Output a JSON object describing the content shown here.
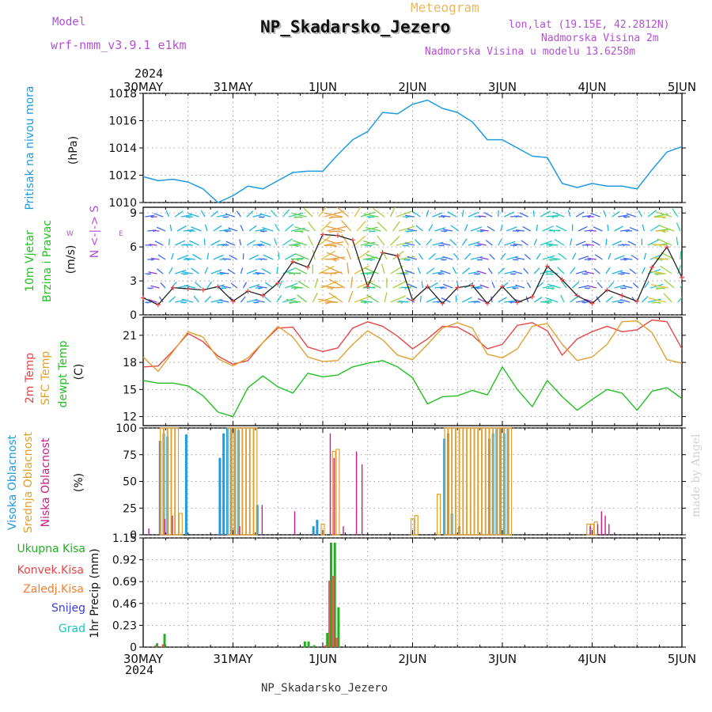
{
  "header": {
    "model_label": "Model",
    "model_name": "wrf-nmm_v3.9.1 e1km",
    "meteogram_label": "Meteogram",
    "station_title": "NP_Skadarsko_Jezero",
    "lonlat": "lon,lat (19.15E, 42.2812N)",
    "elevation": "Nadmorska Visina 2m",
    "model_elevation": "Nadmorska Visina u modelu 13.6258m",
    "year_top": "2024",
    "year_bottom": "2024",
    "footer_station": "NP_Skadarsko_Jezero",
    "watermark": "made by Angel"
  },
  "colors": {
    "pressure": "#1e9be0",
    "temp2m": "#e84545",
    "sfc_temp": "#e0a030",
    "dewpt": "#22c022",
    "cloud_high": "#1e9be0",
    "cloud_mid": "#e0a030",
    "cloud_low": "#c81e8c",
    "precip_total": "#22b022",
    "precip_conv": "#e84545",
    "precip_frozen": "#f08030",
    "snow": "#3c3cd8",
    "grad": "#20c0c0",
    "title_purple": "#b44fd8",
    "meteogram_orange": "#e8b860"
  },
  "chart_data": [
    {
      "type": "line",
      "panel": "pressure",
      "ylabel_lines": [
        "Pritisak na nivou mora",
        "(hPa)"
      ],
      "ylim": [
        1010,
        1018
      ],
      "yticks": [
        1010,
        1012,
        1014,
        1016,
        1018
      ],
      "x_dates": [
        "30MAY",
        "31MAY",
        "1JUN",
        "2JUN",
        "3JUN",
        "4JUN",
        "5JUN"
      ],
      "x_hours": [
        0,
        4,
        8,
        12,
        16,
        20,
        24,
        28,
        32,
        36,
        40,
        44,
        48,
        52,
        56,
        60,
        64,
        68,
        72,
        76,
        80,
        84,
        88,
        92,
        96,
        100,
        104,
        108,
        112,
        116,
        120,
        124,
        128,
        132,
        136,
        140,
        144
      ],
      "values": [
        1011.9,
        1011.6,
        1011.7,
        1011.5,
        1011.0,
        1010.0,
        1010.5,
        1011.2,
        1011.0,
        1011.6,
        1012.2,
        1012.3,
        1012.3,
        1013.5,
        1014.6,
        1015.2,
        1016.6,
        1016.5,
        1017.2,
        1017.5,
        1016.9,
        1016.6,
        1015.9,
        1014.6,
        1014.6,
        1014.0,
        1013.4,
        1013.3,
        1011.4,
        1011.1,
        1011.4,
        1011.2,
        1011.2,
        1011.0,
        1012.4,
        1013.7,
        1014.1
      ]
    },
    {
      "type": "line",
      "panel": "wind",
      "ylabel_lines": [
        "10m Vjetar",
        "Brzina i Pravac",
        "(m/s)"
      ],
      "compass_label": "N <-|-> S",
      "compass_we": "W E",
      "ylim": [
        0,
        9.5
      ],
      "yticks": [
        0,
        3,
        6,
        9
      ],
      "x_hours": [
        0,
        4,
        8,
        12,
        16,
        20,
        24,
        28,
        32,
        36,
        40,
        44,
        48,
        52,
        56,
        60,
        64,
        68,
        72,
        76,
        80,
        84,
        88,
        92,
        96,
        100,
        104,
        108,
        112,
        116,
        120,
        124,
        128,
        132,
        136,
        140,
        144
      ],
      "values": [
        1.5,
        0.9,
        2.4,
        2.3,
        2.2,
        2.5,
        1.2,
        2.1,
        1.7,
        2.8,
        4.7,
        4.2,
        7.1,
        7.0,
        6.6,
        2.5,
        5.5,
        5.2,
        1.3,
        2.5,
        1.0,
        2.4,
        2.6,
        1.0,
        2.5,
        1.1,
        1.6,
        4.3,
        3.1,
        1.7,
        1.0,
        2.2,
        1.7,
        1.2,
        4.2,
        6.0,
        3.3
      ]
    },
    {
      "type": "line",
      "panel": "temperature",
      "ylabel_lines": [
        "2m Temp",
        "SFC Temp",
        "dewpt Temp",
        "(C)"
      ],
      "ylim": [
        11,
        23
      ],
      "yticks": [
        12,
        15,
        18,
        21
      ],
      "x_hours": [
        0,
        4,
        8,
        12,
        16,
        20,
        24,
        28,
        32,
        36,
        40,
        44,
        48,
        52,
        56,
        60,
        64,
        68,
        72,
        76,
        80,
        84,
        88,
        92,
        96,
        100,
        104,
        108,
        112,
        116,
        120,
        124,
        128,
        132,
        136,
        140,
        144
      ],
      "series": [
        {
          "name": "2m Temp",
          "values": [
            17.5,
            17.6,
            19.3,
            21.2,
            20.3,
            18.7,
            17.8,
            18.2,
            20.2,
            21.8,
            21.9,
            19.7,
            19.2,
            19.6,
            21.8,
            22.5,
            22.0,
            20.9,
            19.5,
            20.6,
            22.0,
            21.9,
            21.0,
            19.5,
            20.0,
            22.1,
            22.4,
            21.5,
            18.8,
            20.6,
            21.4,
            22.0,
            21.4,
            21.6,
            22.7,
            22.5,
            19.5
          ]
        },
        {
          "name": "SFC Temp",
          "values": [
            18.6,
            17.0,
            19.2,
            21.4,
            20.8,
            18.4,
            17.6,
            18.5,
            20.2,
            22.0,
            20.8,
            18.6,
            18.1,
            18.2,
            20.0,
            21.5,
            20.5,
            18.8,
            18.3,
            20.0,
            21.8,
            22.4,
            21.8,
            18.9,
            18.5,
            19.5,
            22.0,
            22.3,
            20.0,
            18.2,
            18.6,
            20.0,
            22.5,
            22.6,
            21.3,
            18.3,
            17.9
          ]
        },
        {
          "name": "dewpt Temp",
          "values": [
            16.0,
            15.7,
            15.7,
            15.4,
            14.3,
            12.5,
            12.0,
            15.2,
            16.5,
            15.3,
            14.6,
            16.8,
            16.4,
            16.6,
            17.5,
            17.9,
            18.2,
            17.5,
            16.3,
            13.4,
            14.2,
            14.3,
            14.9,
            14.4,
            17.5,
            15.0,
            13.1,
            16.0,
            14.2,
            12.7,
            13.9,
            15.0,
            14.6,
            12.7,
            14.8,
            15.2,
            14.0
          ]
        }
      ]
    },
    {
      "type": "bar",
      "panel": "clouds",
      "ylabel_lines": [
        "Visoka Oblacnost",
        "Srednja Oblacnost",
        "Niska Oblacnost",
        "(%)"
      ],
      "ylim": [
        0,
        100
      ],
      "yticks": [
        0,
        25,
        50,
        75,
        100
      ],
      "series": [
        {
          "name": "Visoka Oblacnost",
          "x_hours": [
            4.5,
            5.5,
            6.5,
            11.5,
            20.5,
            21.5,
            22.5,
            23.5,
            24.5,
            25.5,
            30.5,
            45.5,
            46.5,
            80.5,
            81.5,
            82.5,
            84.5,
            92.5,
            93.5,
            94.5,
            95.5,
            96.5,
            97.5
          ],
          "values": [
            88,
            95,
            92,
            94,
            72,
            95,
            100,
            100,
            100,
            98,
            28,
            8,
            14,
            90,
            95,
            20,
            8,
            90,
            95,
            100,
            100,
            95,
            100
          ]
        },
        {
          "name": "Srednja Oblacnost",
          "x_hours": [
            5.0,
            6.0,
            7.0,
            8.0,
            9.0,
            10.0,
            23.0,
            24.0,
            25.0,
            26.0,
            27.0,
            28.0,
            29.0,
            30.0,
            48.0,
            51.0,
            52.0,
            72.0,
            73.0,
            79.0,
            81.0,
            82.0,
            83.0,
            84.0,
            85.0,
            86.0,
            87.0,
            88.0,
            89.0,
            90.0,
            91.0,
            92.0,
            93.0,
            94.0,
            95.0,
            96.0,
            97.0,
            98.0,
            119.0,
            120.0,
            121.0
          ],
          "values": [
            100,
            100,
            100,
            100,
            100,
            20,
            100,
            100,
            100,
            100,
            100,
            100,
            100,
            100,
            10,
            78,
            80,
            15,
            18,
            38,
            100,
            100,
            100,
            100,
            100,
            100,
            100,
            100,
            100,
            100,
            100,
            100,
            100,
            100,
            100,
            100,
            100,
            100,
            10,
            10,
            12
          ]
        },
        {
          "name": "Niska Oblacnost",
          "x_hours": [
            1.5,
            5.8,
            7.8,
            25.8,
            31.8,
            40.5,
            50.0,
            51.0,
            53.5,
            57.0,
            58.5,
            119.5,
            121.5,
            122.5,
            123.5,
            124.5
          ],
          "values": [
            6,
            15,
            18,
            8,
            28,
            22,
            95,
            72,
            8,
            78,
            66,
            8,
            10,
            22,
            18,
            10
          ]
        }
      ]
    },
    {
      "type": "bar",
      "panel": "precip",
      "ylabel_lines": [
        "Ukupna Kisa",
        "Konvek.Kisa",
        "Zaledj.Kisa",
        "Snijeg",
        "Grad",
        "1hr Precip (mm)"
      ],
      "ylim": [
        0,
        1.15
      ],
      "yticks": [
        0,
        0.23,
        0.46,
        0.69,
        0.92,
        1.15
      ],
      "series": [
        {
          "name": "Ukupna Kisa",
          "x_hours": [
            3.5,
            5.5,
            43.0,
            44.0,
            45.5,
            49.0,
            50.0,
            51.0,
            52.0
          ],
          "values": [
            0.04,
            0.14,
            0.06,
            0.06,
            0.02,
            0.15,
            1.1,
            1.1,
            0.42
          ]
        },
        {
          "name": "Konvek.Kisa",
          "x_hours": [
            3.5,
            5.5,
            49.0,
            50.0,
            51.0,
            52.0
          ],
          "values": [
            0.02,
            0.03,
            0.02,
            0.7,
            0.75,
            0.1
          ]
        }
      ]
    }
  ]
}
